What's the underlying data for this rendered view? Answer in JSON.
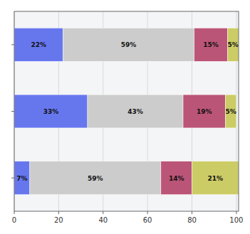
{
  "chart_data": {
    "type": "bar",
    "orientation": "horizontal",
    "stacked": true,
    "data_labels": true,
    "grid": true,
    "categories": [
      null,
      null,
      null
    ],
    "series": [
      {
        "color": "#6677ee",
        "values": [
          22,
          33,
          7
        ],
        "value_labels": [
          "22%",
          "33%",
          "7%"
        ]
      },
      {
        "color": "#cccccc",
        "values": [
          59,
          43,
          59
        ],
        "value_labels": [
          "59%",
          "43%",
          "59%"
        ]
      },
      {
        "color": "#bb5577",
        "values": [
          15,
          19,
          14
        ],
        "value_labels": [
          "15%",
          "19%",
          "14%"
        ]
      },
      {
        "color": "#cccc66",
        "values": [
          5,
          5,
          21
        ],
        "value_labels": [
          "5%",
          "5%",
          "21%"
        ]
      }
    ],
    "xlim": [
      0,
      101
    ],
    "xticks": [
      0,
      20,
      40,
      60,
      80,
      100
    ]
  }
}
